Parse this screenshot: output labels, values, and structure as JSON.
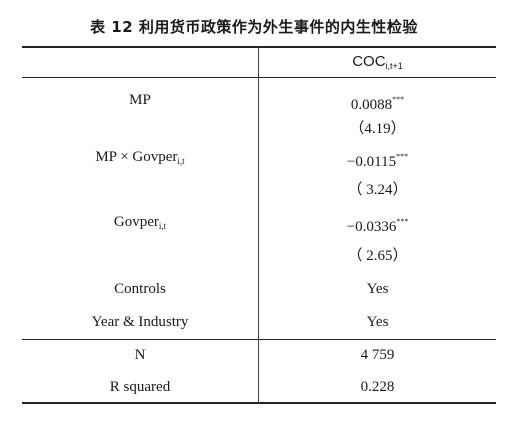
{
  "title": "表 12 利用货币政策作为外生事件的内生性检验",
  "table": {
    "header": {
      "text": "COC",
      "sub": "i,t+1"
    },
    "rows": [
      {
        "label": "MP",
        "value": "0.0088",
        "value_sup": "***"
      },
      {
        "value": "（4.19）"
      },
      {
        "label": "MP × Govper",
        "label_sub": "i,t",
        "value": "−0.0115",
        "value_sup": "***"
      },
      {
        "value": "（ 3.24）"
      },
      {
        "label": "Govper",
        "label_sub": "i,t",
        "value": "−0.0336",
        "value_sup": "***"
      },
      {
        "value": "（ 2.65）"
      },
      {
        "label": "Controls",
        "value": "Yes"
      },
      {
        "label": "Year & Industry",
        "value": "Yes"
      },
      {
        "label": "N",
        "value": "4 759"
      },
      {
        "label": "R squared",
        "value": "0.228"
      }
    ]
  }
}
